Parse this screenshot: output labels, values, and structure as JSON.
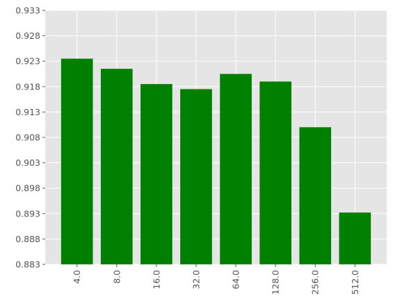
{
  "chart_data": {
    "type": "bar",
    "title": "",
    "xlabel": "",
    "ylabel": "",
    "categories": [
      "4.0",
      "8.0",
      "16.0",
      "32.0",
      "64.0",
      "128.0",
      "256.0",
      "512.0"
    ],
    "values": [
      0.9235,
      0.9215,
      0.9185,
      0.9175,
      0.9205,
      0.919,
      0.91,
      0.8932
    ],
    "ylim": [
      0.883,
      0.933
    ],
    "yticks": [
      "0.883",
      "0.888",
      "0.893",
      "0.898",
      "0.903",
      "0.908",
      "0.913",
      "0.918",
      "0.923",
      "0.928",
      "0.933"
    ],
    "grid": true,
    "bar_color": "#008000",
    "background_color": "#e5e5e5",
    "grid_color": "#ffffff"
  }
}
